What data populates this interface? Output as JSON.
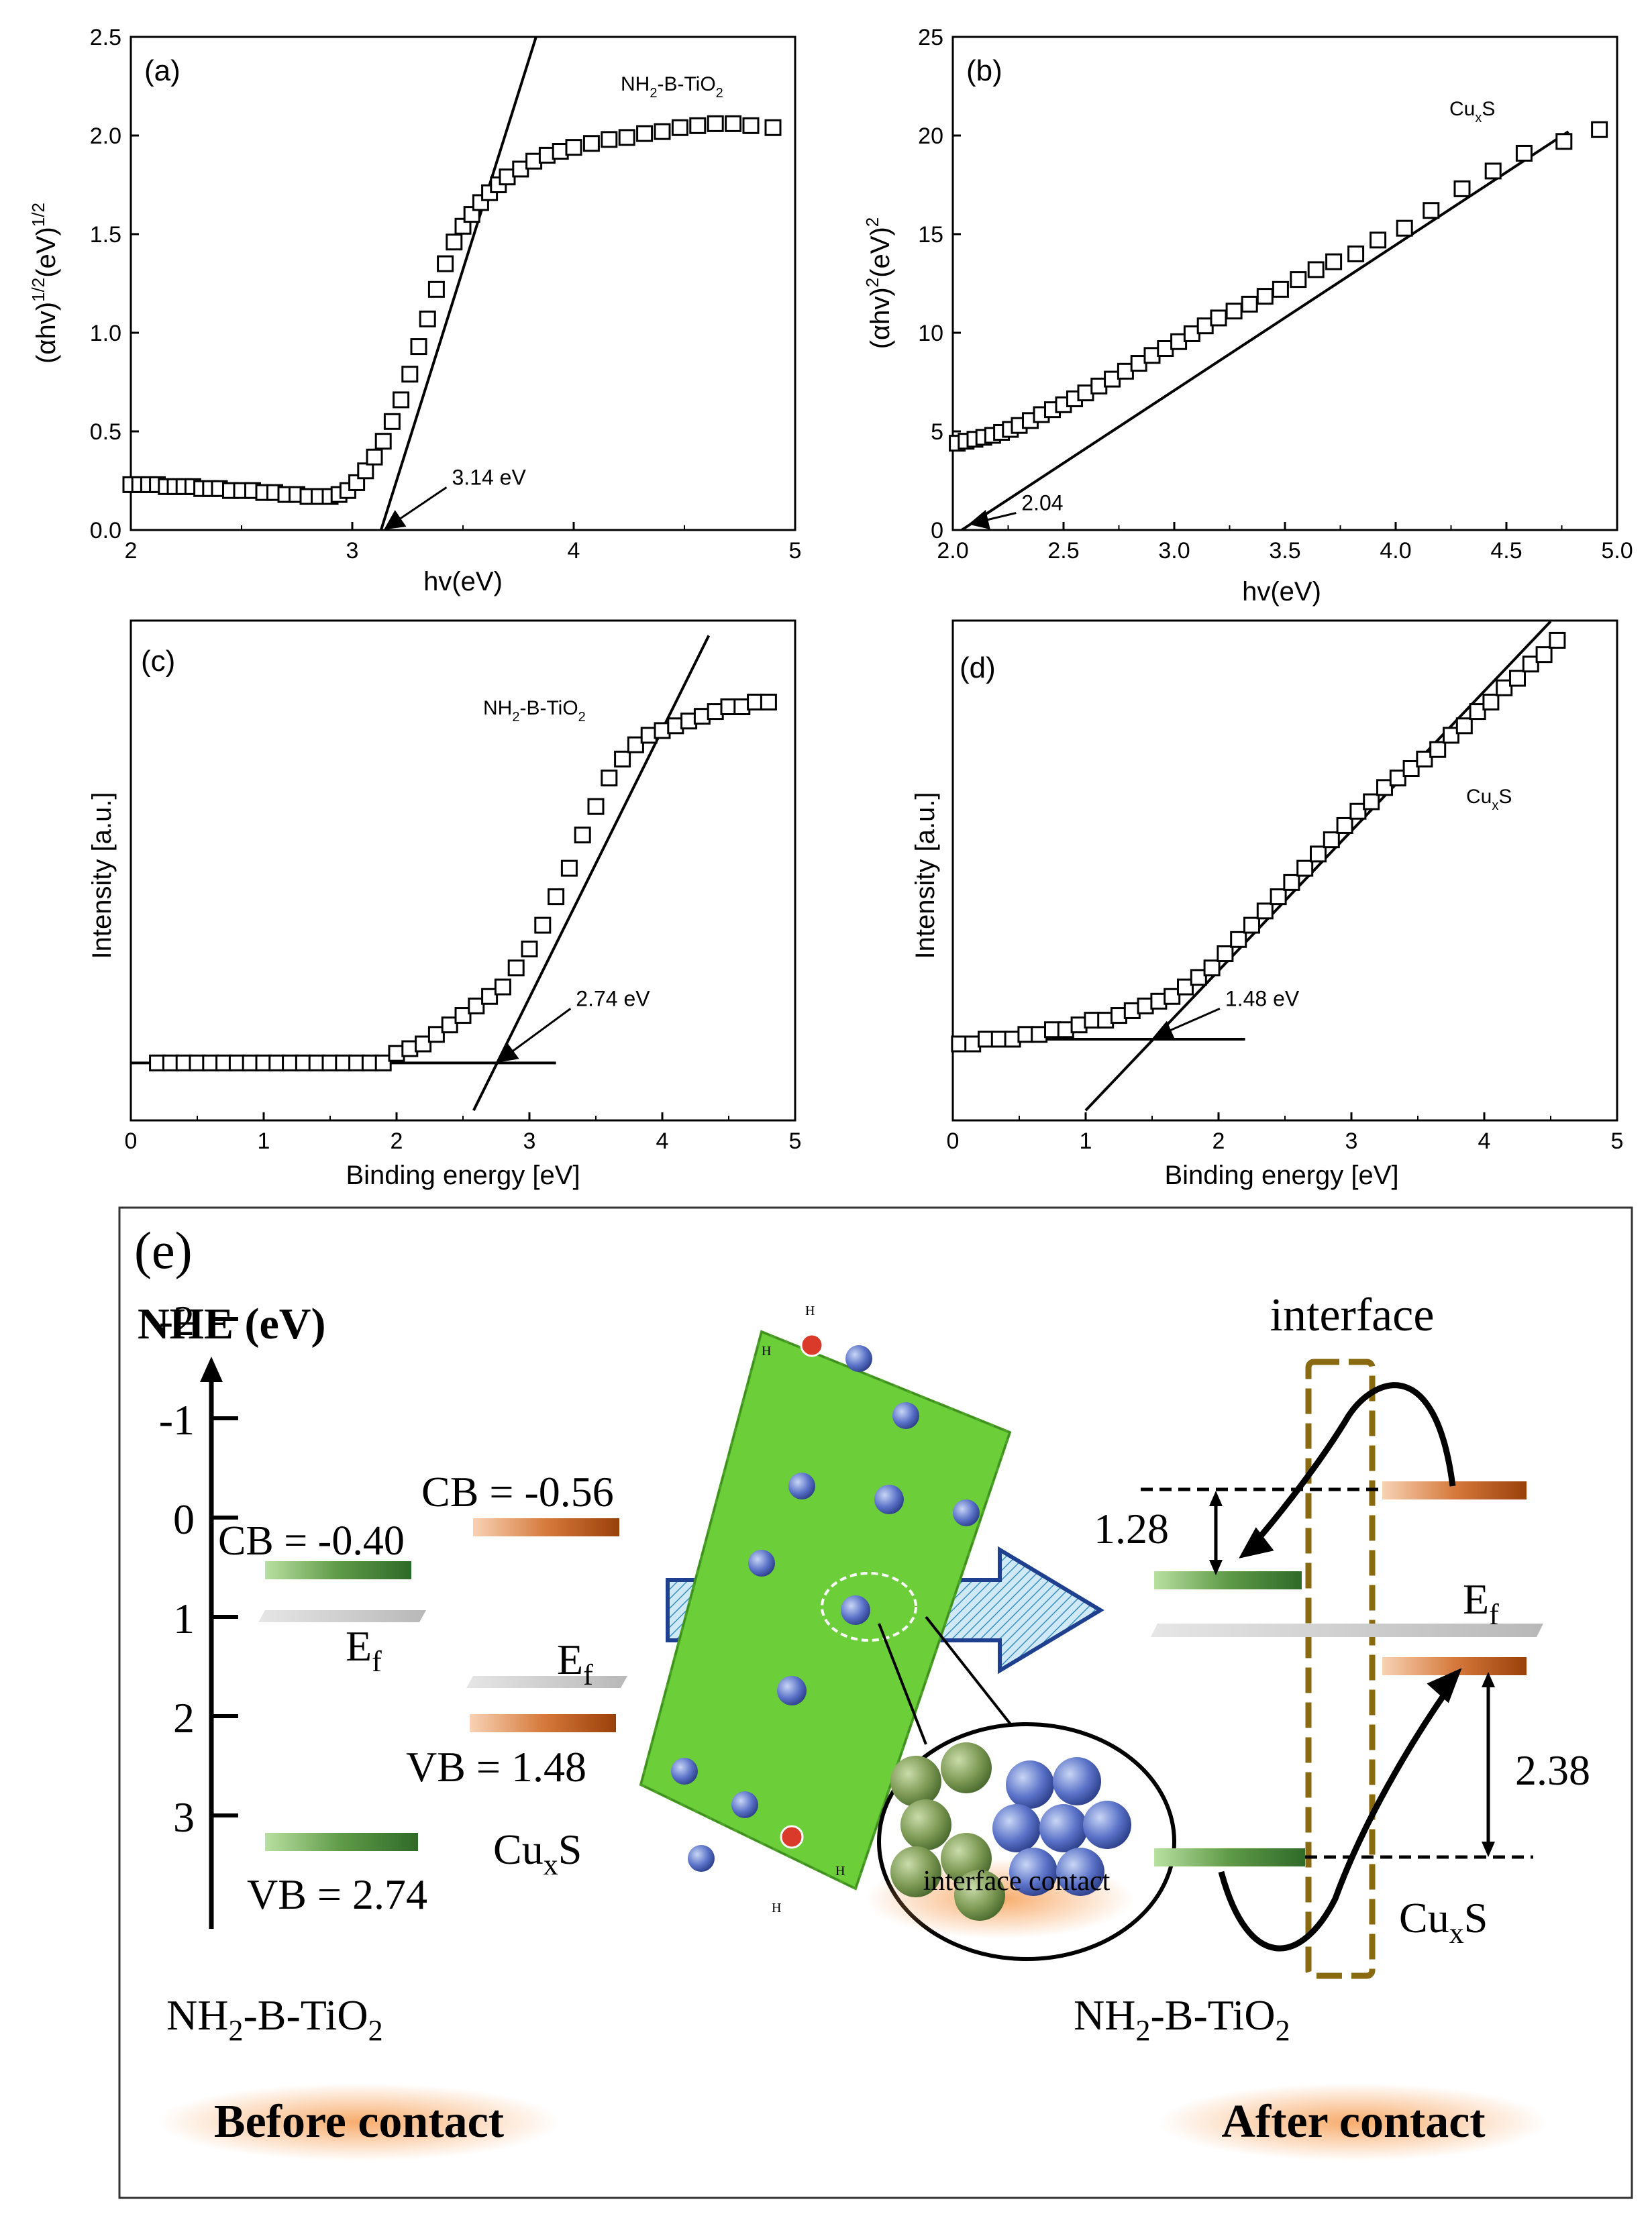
{
  "colors": {
    "green_dark": "#2f6b28",
    "green_light": "#a6d88f",
    "orange_dark": "#a84a10",
    "orange_light": "#f5c3a0",
    "gray": "#c8c8c8",
    "frame_gold": "#8a6a10",
    "glow": "#f7a35c"
  },
  "chart_data": [
    {
      "id": "a",
      "type": "scatter",
      "panel_label": "(a)",
      "series_label_main": "NH",
      "series_label_sub": "2",
      "series_label_mid": "-B-TiO",
      "series_label_sub2": "2",
      "xlabel": "hv(eV)",
      "ylabel_main": "(αhv)",
      "ylabel_sup1": "1/2",
      "ylabel_mid": "(eV)",
      "ylabel_sup2": "1/2",
      "xlim": [
        2,
        5
      ],
      "ylim": [
        0,
        2.5
      ],
      "xticks": [
        {
          "v": 2,
          "label": "2"
        },
        {
          "v": 3,
          "label": "3"
        },
        {
          "v": 4,
          "label": "4"
        },
        {
          "v": 5,
          "label": "5"
        }
      ],
      "yticks": [
        {
          "v": 0,
          "label": "0.0"
        },
        {
          "v": 0.5,
          "label": "0.5"
        },
        {
          "v": 1,
          "label": "1.0"
        },
        {
          "v": 1.5,
          "label": "1.5"
        },
        {
          "v": 2,
          "label": "2.0"
        },
        {
          "v": 2.5,
          "label": "2.5"
        }
      ],
      "x": [
        2.0,
        2.04,
        2.08,
        2.12,
        2.16,
        2.2,
        2.24,
        2.28,
        2.32,
        2.36,
        2.4,
        2.45,
        2.5,
        2.55,
        2.6,
        2.65,
        2.7,
        2.75,
        2.8,
        2.85,
        2.9,
        2.94,
        2.98,
        3.02,
        3.06,
        3.1,
        3.14,
        3.18,
        3.22,
        3.26,
        3.3,
        3.34,
        3.38,
        3.42,
        3.46,
        3.5,
        3.54,
        3.58,
        3.62,
        3.66,
        3.7,
        3.76,
        3.82,
        3.88,
        3.94,
        4.0,
        4.08,
        4.16,
        4.24,
        4.32,
        4.4,
        4.48,
        4.56,
        4.64,
        4.72,
        4.8,
        4.9
      ],
      "y": [
        0.23,
        0.23,
        0.23,
        0.23,
        0.22,
        0.22,
        0.22,
        0.22,
        0.21,
        0.21,
        0.21,
        0.2,
        0.2,
        0.2,
        0.19,
        0.19,
        0.18,
        0.18,
        0.17,
        0.17,
        0.17,
        0.18,
        0.2,
        0.24,
        0.3,
        0.37,
        0.45,
        0.55,
        0.66,
        0.79,
        0.93,
        1.07,
        1.22,
        1.35,
        1.46,
        1.54,
        1.6,
        1.66,
        1.71,
        1.75,
        1.79,
        1.83,
        1.87,
        1.9,
        1.92,
        1.94,
        1.96,
        1.98,
        1.99,
        2.01,
        2.02,
        2.04,
        2.05,
        2.06,
        2.06,
        2.05,
        2.04
      ],
      "fit_line": {
        "x": [
          3.13,
          3.83
        ],
        "y": [
          0,
          2.5
        ]
      },
      "annotation": {
        "text": "3.14 eV",
        "x": 3.14,
        "y": 0,
        "text_x": 3.45,
        "text_y": 0.23
      }
    },
    {
      "id": "b",
      "type": "scatter",
      "panel_label": "(b)",
      "series_label_main": "Cu",
      "series_label_sub": "x",
      "series_label_mid": "S",
      "xlabel": "hv(eV)",
      "ylabel_main": "(αhv)",
      "ylabel_sup1": "2",
      "ylabel_mid": "(eV)",
      "ylabel_sup2": "2",
      "xlim": [
        2,
        5
      ],
      "ylim": [
        0,
        25
      ],
      "xticks": [
        {
          "v": 2,
          "label": "2.0"
        },
        {
          "v": 2.5,
          "label": "2.5"
        },
        {
          "v": 3,
          "label": "3.0"
        },
        {
          "v": 3.5,
          "label": "3.5"
        },
        {
          "v": 4,
          "label": "4.0"
        },
        {
          "v": 4.5,
          "label": "4.5"
        },
        {
          "v": 5,
          "label": "5.0"
        }
      ],
      "yticks": [
        {
          "v": 0,
          "label": "0"
        },
        {
          "v": 5,
          "label": "5"
        },
        {
          "v": 10,
          "label": "10"
        },
        {
          "v": 15,
          "label": "15"
        },
        {
          "v": 20,
          "label": "20"
        },
        {
          "v": 25,
          "label": "25"
        }
      ],
      "x": [
        2.02,
        2.06,
        2.1,
        2.14,
        2.18,
        2.22,
        2.26,
        2.3,
        2.35,
        2.4,
        2.45,
        2.5,
        2.55,
        2.6,
        2.66,
        2.72,
        2.78,
        2.84,
        2.9,
        2.96,
        3.02,
        3.08,
        3.14,
        3.2,
        3.27,
        3.34,
        3.41,
        3.48,
        3.56,
        3.64,
        3.72,
        3.82,
        3.92,
        4.04,
        4.16,
        4.3,
        4.44,
        4.58,
        4.76,
        4.92
      ],
      "y": [
        4.4,
        4.5,
        4.6,
        4.7,
        4.8,
        4.95,
        5.1,
        5.3,
        5.55,
        5.85,
        6.1,
        6.35,
        6.65,
        6.95,
        7.3,
        7.65,
        8.05,
        8.45,
        8.85,
        9.2,
        9.55,
        9.95,
        10.35,
        10.75,
        11.1,
        11.45,
        11.85,
        12.2,
        12.7,
        13.2,
        13.6,
        14.0,
        14.7,
        15.3,
        16.2,
        17.3,
        18.2,
        19.1,
        19.7,
        20.3
      ],
      "fit_line": {
        "x": [
          2.04,
          4.78
        ],
        "y": [
          0,
          20.2
        ]
      },
      "annotation": {
        "text": "2.04",
        "x": 2.07,
        "y": 0.2,
        "text_x": 2.31,
        "text_y": 1.0
      }
    },
    {
      "id": "c",
      "type": "scatter",
      "panel_label": "(c)",
      "series_label_main": "NH",
      "series_label_sub": "2",
      "series_label_mid": "-B-TiO",
      "series_label_sub2": "2",
      "xlabel": "Binding energy [eV]",
      "ylabel": "Intensity [a.u.]",
      "xlim": [
        0,
        5
      ],
      "ylim": [
        0,
        1
      ],
      "xticks": [
        {
          "v": 0,
          "label": "0"
        },
        {
          "v": 1,
          "label": "1"
        },
        {
          "v": 2,
          "label": "2"
        },
        {
          "v": 3,
          "label": "3"
        },
        {
          "v": 4,
          "label": "4"
        },
        {
          "v": 5,
          "label": "5"
        }
      ],
      "x": [
        0.2,
        0.3,
        0.4,
        0.5,
        0.6,
        0.7,
        0.8,
        0.9,
        1.0,
        1.1,
        1.2,
        1.3,
        1.4,
        1.5,
        1.6,
        1.7,
        1.8,
        1.9,
        2.0,
        2.1,
        2.2,
        2.3,
        2.4,
        2.5,
        2.6,
        2.7,
        2.8,
        2.9,
        3.0,
        3.1,
        3.2,
        3.3,
        3.4,
        3.5,
        3.6,
        3.7,
        3.8,
        3.9,
        4.0,
        4.1,
        4.2,
        4.3,
        4.4,
        4.5,
        4.6,
        4.7,
        4.8
      ],
      "y": [
        0.1,
        0.1,
        0.1,
        0.1,
        0.1,
        0.1,
        0.1,
        0.1,
        0.1,
        0.1,
        0.1,
        0.1,
        0.1,
        0.1,
        0.1,
        0.1,
        0.1,
        0.1,
        0.12,
        0.13,
        0.14,
        0.16,
        0.18,
        0.2,
        0.22,
        0.24,
        0.26,
        0.3,
        0.34,
        0.39,
        0.45,
        0.51,
        0.58,
        0.64,
        0.7,
        0.74,
        0.77,
        0.79,
        0.8,
        0.81,
        0.82,
        0.83,
        0.84,
        0.85,
        0.85,
        0.86,
        0.86
      ],
      "baseline": {
        "x": [
          0,
          3.2
        ],
        "y": [
          0.1,
          0.1
        ]
      },
      "fit_line": {
        "x": [
          2.58,
          4.35
        ],
        "y": [
          0,
          1
        ]
      },
      "annotation": {
        "text": "2.74 eV",
        "x": 2.75,
        "y": 0.1,
        "text_x": 3.35,
        "text_y": 0.22
      }
    },
    {
      "id": "d",
      "type": "scatter",
      "panel_label": "(d)",
      "series_label_main": "Cu",
      "series_label_sub": "x",
      "series_label_mid": "S",
      "xlabel": "Binding energy [eV]",
      "ylabel": "Intensity [a.u.]",
      "xlim": [
        0,
        5
      ],
      "ylim": [
        0,
        1
      ],
      "xticks": [
        {
          "v": 0,
          "label": "0"
        },
        {
          "v": 1,
          "label": "1"
        },
        {
          "v": 2,
          "label": "2"
        },
        {
          "v": 3,
          "label": "3"
        },
        {
          "v": 4,
          "label": "4"
        },
        {
          "v": 5,
          "label": "5"
        }
      ],
      "x": [
        0.05,
        0.15,
        0.25,
        0.35,
        0.45,
        0.55,
        0.65,
        0.75,
        0.85,
        0.95,
        1.05,
        1.15,
        1.25,
        1.35,
        1.45,
        1.55,
        1.65,
        1.75,
        1.85,
        1.95,
        2.05,
        2.15,
        2.25,
        2.35,
        2.45,
        2.55,
        2.65,
        2.75,
        2.85,
        2.95,
        3.05,
        3.15,
        3.25,
        3.35,
        3.45,
        3.55,
        3.65,
        3.75,
        3.85,
        3.95,
        4.05,
        4.15,
        4.25,
        4.35,
        4.45,
        4.55
      ],
      "y": [
        0.14,
        0.14,
        0.15,
        0.15,
        0.15,
        0.16,
        0.16,
        0.17,
        0.17,
        0.18,
        0.19,
        0.19,
        0.2,
        0.21,
        0.22,
        0.23,
        0.24,
        0.26,
        0.28,
        0.3,
        0.33,
        0.36,
        0.39,
        0.42,
        0.45,
        0.48,
        0.51,
        0.54,
        0.57,
        0.6,
        0.63,
        0.65,
        0.68,
        0.7,
        0.72,
        0.74,
        0.76,
        0.79,
        0.81,
        0.84,
        0.86,
        0.89,
        0.91,
        0.94,
        0.96,
        0.99
      ],
      "baseline": {
        "x": [
          0,
          2.2
        ],
        "y": [
          0.15,
          0.15
        ]
      },
      "fit_line": {
        "x": [
          1.0,
          4.5
        ],
        "y": [
          0,
          1.03
        ]
      },
      "annotation": {
        "text": "1.48 eV",
        "x": 1.5,
        "y": 0.15,
        "text_x": 2.05,
        "text_y": 0.22
      }
    }
  ],
  "band_diagram": {
    "panel_label": "(e)",
    "axis_title": "NHE (eV)",
    "nhe_ticks": [
      {
        "v": -2,
        "label": "-2"
      },
      {
        "v": -1,
        "label": "-1"
      },
      {
        "v": 0,
        "label": "0"
      },
      {
        "v": 1,
        "label": "1"
      },
      {
        "v": 2,
        "label": "2"
      },
      {
        "v": 3,
        "label": "3"
      }
    ],
    "before": {
      "tio2_cb_label": "CB = -0.40",
      "tio2_vb_label": "VB = 2.74",
      "tio2_ef_main": "E",
      "tio2_ef_sub": "f",
      "cuxs_cb_label": "CB = -0.56",
      "cuxs_vb_label": "VB = 1.48",
      "cuxs_ef_main": "E",
      "cuxs_ef_sub": "f",
      "cuxs_name_main": "Cu",
      "cuxs_name_sub": "x",
      "cuxs_name_end": "S",
      "tio2_name_a": "NH",
      "tio2_name_sub1": "2",
      "tio2_name_b": "-B-TiO",
      "tio2_name_sub2": "2",
      "caption": "Before contact"
    },
    "after": {
      "interface_label": "interface",
      "gap_top": "1.28",
      "gap_bottom": "2.38",
      "ef_main": "E",
      "ef_sub": "f",
      "cuxs_name_main": "Cu",
      "cuxs_name_sub": "x",
      "cuxs_name_end": "S",
      "tio2_name_a": "NH",
      "tio2_name_sub1": "2",
      "tio2_name_b": "-B-TiO",
      "tio2_name_sub2": "2",
      "caption": "After contact"
    },
    "illustration": {
      "inset_label": "interface contact",
      "h_label": "H"
    }
  }
}
